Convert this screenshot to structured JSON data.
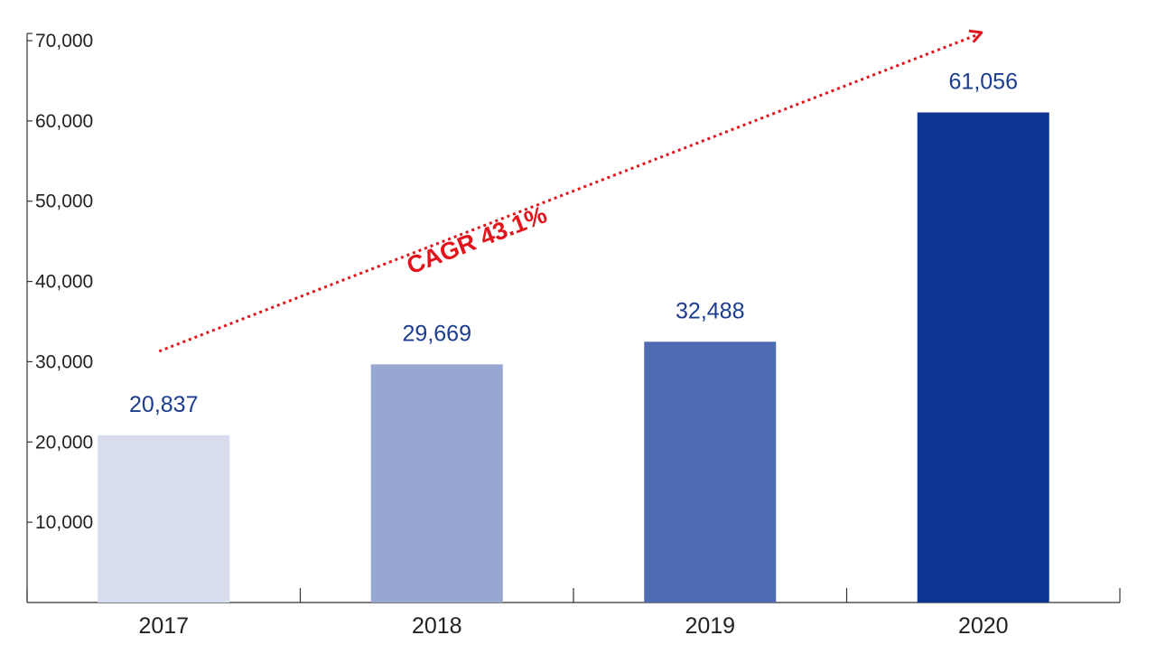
{
  "chart_data": {
    "type": "bar",
    "title": "",
    "xlabel": "",
    "ylabel": "",
    "categories": [
      "2017",
      "2018",
      "2019",
      "2020"
    ],
    "values": [
      20837,
      29669,
      32488,
      61056
    ],
    "data_labels": [
      "20,837",
      "29,669",
      "32,488",
      "61,056"
    ],
    "ylim": [
      0,
      70000
    ],
    "yticks": [
      10000,
      20000,
      30000,
      40000,
      50000,
      60000,
      70000
    ],
    "ytick_labels": [
      "10,000",
      "20,000",
      "30,000",
      "40,000",
      "50,000",
      "60,000",
      "70,000"
    ],
    "grid": false,
    "legend": "none",
    "bar_colors": [
      "#d7ddee",
      "#96a8d1",
      "#4f6cb3",
      "#0e3592"
    ],
    "label_color": "#1c3d8f",
    "annotation": {
      "text": "CAGR 43.1%",
      "color": "#e3131b",
      "arrow": "dotted",
      "from_category": "2017",
      "to_category": "2020"
    }
  }
}
